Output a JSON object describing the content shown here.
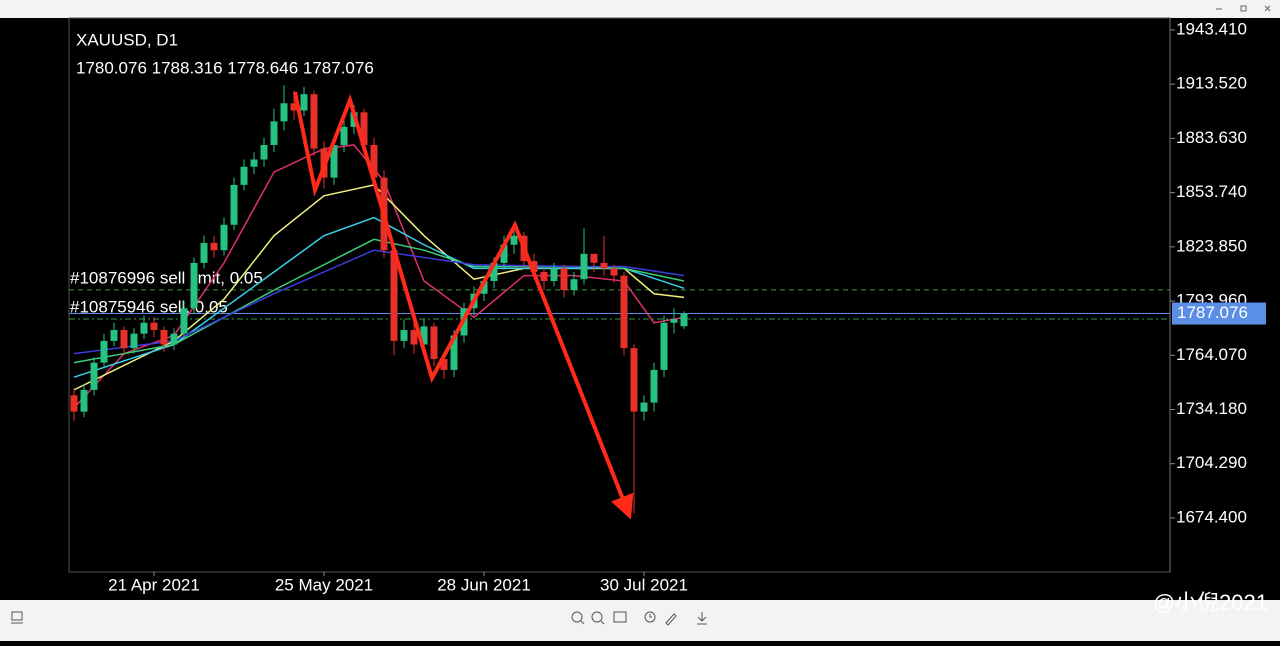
{
  "chart_data": {
    "type": "candlestick",
    "symbol": "XAUUSD, D1",
    "ohlc_text": "1780.076 1788.316 1778.646 1787.076",
    "categories": [
      null,
      null,
      null,
      null,
      null,
      null,
      null,
      null,
      "21 Apr 2021",
      null,
      null,
      null,
      null,
      null,
      null,
      null,
      null,
      null,
      null,
      null,
      null,
      null,
      null,
      null,
      null,
      "25 May 2021",
      null,
      null,
      null,
      null,
      null,
      null,
      null,
      null,
      null,
      null,
      null,
      null,
      null,
      null,
      null,
      "28 Jun 2021",
      null,
      null,
      null,
      null,
      null,
      null,
      null,
      null,
      null,
      null,
      null,
      null,
      null,
      null,
      null,
      "30 Jul 2021",
      null,
      null,
      null,
      null
    ],
    "open": [
      1742,
      1733,
      1745,
      1760,
      1772,
      1778,
      1768,
      1776,
      1782,
      1778,
      1770,
      1776,
      1790,
      1815,
      1826,
      1822,
      1836,
      1858,
      1868,
      1872,
      1880,
      1893,
      1903,
      1899,
      1908,
      1878,
      1862,
      1880,
      1890,
      1898,
      1880,
      1862,
      1822,
      1772,
      1778,
      1770,
      1780,
      1762,
      1756,
      1775,
      1790,
      1798,
      1805,
      1815,
      1825,
      1830,
      1816,
      1810,
      1805,
      1812,
      1800,
      1806,
      1820,
      1815,
      1812,
      1808,
      1768,
      1733,
      1738,
      1756,
      1782,
      1780.076
    ],
    "high": [
      1746,
      1748,
      1763,
      1776,
      1782,
      1780,
      1779,
      1786,
      1785,
      1780,
      1779,
      1794,
      1818,
      1830,
      1830,
      1840,
      1862,
      1872,
      1876,
      1884,
      1900,
      1913,
      1910,
      1912,
      1910,
      1882,
      1884,
      1894,
      1902,
      1900,
      1884,
      1866,
      1824,
      1784,
      1782,
      1784,
      1782,
      1762,
      1778,
      1793,
      1802,
      1808,
      1818,
      1830,
      1836,
      1832,
      1820,
      1812,
      1815,
      1814,
      1810,
      1834,
      1820,
      1830,
      1814,
      1810,
      1770,
      1742,
      1760,
      1786,
      1790,
      1788.316
    ],
    "low": [
      1728,
      1730,
      1742,
      1757,
      1769,
      1764,
      1765,
      1773,
      1774,
      1766,
      1767,
      1773,
      1787,
      1812,
      1818,
      1819,
      1833,
      1855,
      1864,
      1868,
      1876,
      1888,
      1894,
      1896,
      1874,
      1856,
      1858,
      1876,
      1886,
      1876,
      1858,
      1818,
      1764,
      1768,
      1765,
      1767,
      1758,
      1751,
      1752,
      1771,
      1786,
      1794,
      1801,
      1811,
      1820,
      1812,
      1806,
      1800,
      1802,
      1796,
      1797,
      1803,
      1810,
      1808,
      1804,
      1764,
      1677,
      1728,
      1733,
      1752,
      1776,
      1778.646
    ],
    "close": [
      1733,
      1745,
      1760,
      1772,
      1778,
      1768,
      1776,
      1782,
      1778,
      1770,
      1776,
      1790,
      1815,
      1826,
      1822,
      1836,
      1858,
      1868,
      1872,
      1880,
      1893,
      1903,
      1899,
      1908,
      1878,
      1862,
      1880,
      1890,
      1898,
      1880,
      1862,
      1822,
      1772,
      1778,
      1770,
      1780,
      1762,
      1756,
      1775,
      1790,
      1798,
      1805,
      1815,
      1825,
      1830,
      1816,
      1810,
      1805,
      1812,
      1800,
      1806,
      1820,
      1815,
      1812,
      1808,
      1768,
      1733,
      1738,
      1756,
      1782,
      1784,
      1787.076
    ],
    "up_color": "#26c281",
    "down_color": "#e8302a",
    "ylim": [
      1644.6,
      1950.0
    ],
    "yticks": [
      {
        "value": 1943.41,
        "label": "1943.410"
      },
      {
        "value": 1913.52,
        "label": "1913.520"
      },
      {
        "value": 1883.63,
        "label": "1883.630"
      },
      {
        "value": 1853.74,
        "label": "1853.740"
      },
      {
        "value": 1823.85,
        "label": "1823.850"
      },
      {
        "value": 1793.96,
        "label": "1793.960"
      },
      {
        "value": 1764.07,
        "label": "1764.070"
      },
      {
        "value": 1734.18,
        "label": "1734.180"
      },
      {
        "value": 1704.29,
        "label": "1704.290"
      },
      {
        "value": 1674.4,
        "label": "1674.400"
      }
    ],
    "price_line": {
      "value": 1787.076,
      "label": "1787.076",
      "color": "#5b8fe6"
    },
    "orders": [
      {
        "label": "#10876996 sell limit, 0.05",
        "value": 1800.1,
        "color": "#2f9e44"
      },
      {
        "label": "#10875946 sell, 0.05",
        "value": 1784.1,
        "color": "#2f9e44"
      }
    ],
    "overlays": [
      {
        "color": "#e0306a",
        "x": [
          0,
          5,
          10,
          15,
          20,
          25,
          28,
          31,
          35,
          40,
          45,
          50,
          55,
          58,
          61
        ],
        "values": [
          1735,
          1765,
          1775,
          1815,
          1865,
          1878,
          1880,
          1860,
          1805,
          1785,
          1808,
          1808,
          1805,
          1782,
          1785
        ]
      },
      {
        "color": "#f2f07a",
        "x": [
          0,
          10,
          15,
          20,
          25,
          30,
          35,
          40,
          45,
          50,
          55,
          58,
          61
        ],
        "values": [
          1745,
          1772,
          1795,
          1830,
          1852,
          1858,
          1830,
          1806,
          1812,
          1812,
          1812,
          1798,
          1796
        ]
      },
      {
        "color": "#39d0e8",
        "x": [
          0,
          10,
          20,
          25,
          30,
          35,
          40,
          45,
          50,
          55,
          61
        ],
        "values": [
          1752,
          1770,
          1810,
          1830,
          1840,
          1825,
          1812,
          1812,
          1812,
          1812,
          1801
        ]
      },
      {
        "color": "#3ccf7a",
        "x": [
          0,
          10,
          20,
          30,
          35,
          40,
          50,
          55,
          61
        ],
        "values": [
          1760,
          1770,
          1800,
          1828,
          1822,
          1813,
          1813,
          1812,
          1805
        ]
      },
      {
        "color": "#3b3bdc",
        "x": [
          0,
          10,
          20,
          30,
          40,
          50,
          55,
          61
        ],
        "values": [
          1765,
          1772,
          1798,
          1822,
          1814,
          1813,
          1813,
          1808
        ]
      }
    ]
  },
  "watermark": "@小倪2021"
}
